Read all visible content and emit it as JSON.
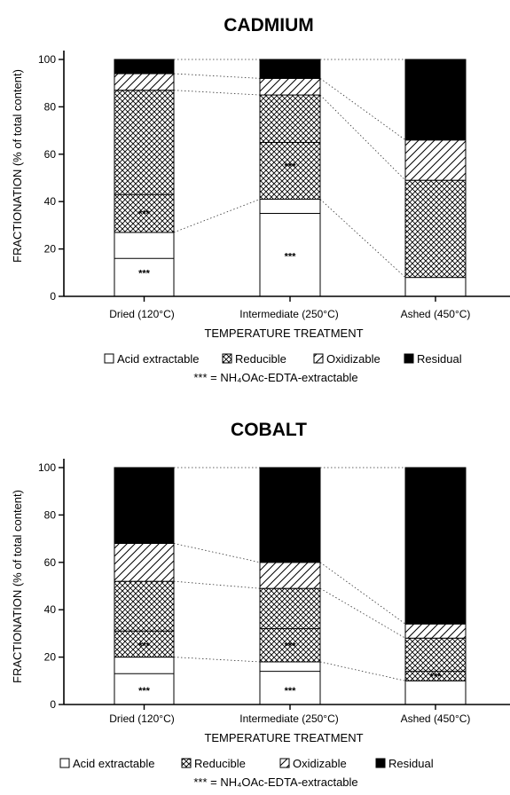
{
  "chart_data": [
    {
      "type": "bar",
      "stacked": true,
      "title": "CADMIUM",
      "xlabel": "TEMPERATURE TREATMENT",
      "ylabel": "FRACTIONATION (% of total content)",
      "ylim": [
        0,
        100
      ],
      "yticks": [
        "0",
        "20",
        "40",
        "60",
        "80",
        "100"
      ],
      "grid": false,
      "legend_position": "bottom",
      "categories": [
        "Dried (120°C)",
        "Intermediate (250°C)",
        "Ashed (450°C)"
      ],
      "series": [
        {
          "name": "Acid extractable",
          "values": [
            27,
            41,
            8
          ]
        },
        {
          "name": "Reducible",
          "values": [
            60,
            44,
            41
          ]
        },
        {
          "name": "Oxidizable",
          "values": [
            7,
            7,
            17
          ]
        },
        {
          "name": "Residual",
          "values": [
            6,
            8,
            34
          ]
        }
      ],
      "edta_extractable": [
        {
          "category": "Dried (120°C)",
          "boundary": 16,
          "label_y": 10
        },
        {
          "category": "Dried (120°C)",
          "boundary": 43,
          "label_y": 35
        },
        {
          "category": "Intermediate (250°C)",
          "boundary": 35,
          "label_y": 17
        },
        {
          "category": "Intermediate (250°C)",
          "boundary": 65,
          "label_y": 55
        }
      ],
      "annotation_marker": "***",
      "legend_note": "*** = NH₄OAc-EDTA-extractable"
    },
    {
      "type": "bar",
      "stacked": true,
      "title": "COBALT",
      "xlabel": "TEMPERATURE TREATMENT",
      "ylabel": "FRACTIONATION (% of total content)",
      "ylim": [
        0,
        100
      ],
      "yticks": [
        "0",
        "20",
        "40",
        "60",
        "80",
        "100"
      ],
      "grid": false,
      "legend_position": "bottom",
      "categories": [
        "Dried (120°C)",
        "Intermediate (250°C)",
        "Ashed (450°C)"
      ],
      "series": [
        {
          "name": "Acid extractable",
          "values": [
            20,
            18,
            10
          ]
        },
        {
          "name": "Reducible",
          "values": [
            32,
            31,
            18
          ]
        },
        {
          "name": "Oxidizable",
          "values": [
            16,
            11,
            6
          ]
        },
        {
          "name": "Residual",
          "values": [
            32,
            40,
            66
          ]
        }
      ],
      "edta_extractable": [
        {
          "category": "Dried (120°C)",
          "boundary": 13,
          "label_y": 6
        },
        {
          "category": "Dried (120°C)",
          "boundary": 31,
          "label_y": 25
        },
        {
          "category": "Intermediate (250°C)",
          "boundary": 14,
          "label_y": 6
        },
        {
          "category": "Intermediate (250°C)",
          "boundary": 32,
          "label_y": 25
        },
        {
          "category": "Ashed (450°C)",
          "boundary": 14,
          "label_y": 12
        }
      ],
      "annotation_marker": "***",
      "legend_note": "*** = NH₄OAc-EDTA-extractable"
    }
  ],
  "colors": {
    "axis": "#000000",
    "residual": "#000000",
    "acid_extractable": "#ffffff",
    "connector": "#333333"
  },
  "pattern_names": {
    "Acid extractable": "blank",
    "Reducible": "crosshatch",
    "Oxidizable": "diagonal",
    "Residual": "solid"
  }
}
